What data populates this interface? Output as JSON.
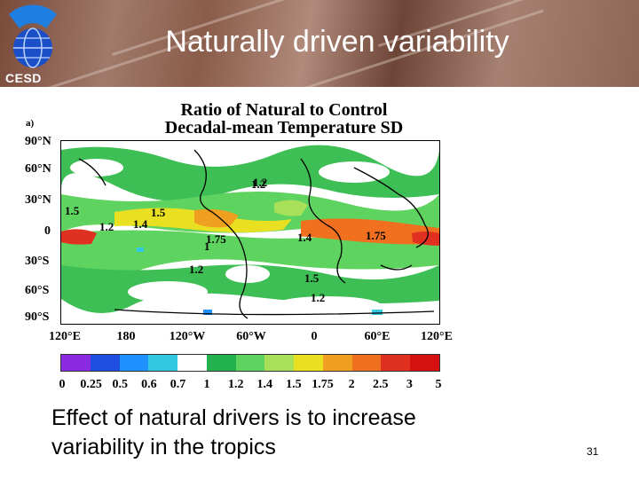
{
  "slide": {
    "title": "Naturally driven variability",
    "logo_text": "CESD",
    "page_number": "31",
    "caption_line1": "Effect of natural drivers is to increase",
    "caption_line2": "variability in the tropics"
  },
  "figure": {
    "title_line1": "Ratio of Natural to Control",
    "title_line2": "Decadal-mean Temperature SD",
    "panel_label": "a)",
    "lat_labels": [
      "90°N",
      "60°N",
      "30°N",
      "0",
      "30°S",
      "60°S",
      "90°S"
    ],
    "lon_labels": [
      "120°E",
      "180",
      "120°W",
      "60°W",
      "0",
      "60°E",
      "120°E"
    ],
    "colorbar_labels": [
      "0",
      "0.25",
      "0.5",
      "0.6",
      "0.7",
      "1",
      "1.2",
      "1.4",
      "1.5",
      "1.75",
      "2",
      "2.5",
      "3",
      "5"
    ],
    "colorbar_colors": [
      "#8a2be2",
      "#1f4fe0",
      "#1e90ff",
      "#33c8e0",
      "#ffffff",
      "#22b14c",
      "#5fd35f",
      "#a8e05a",
      "#e8e020",
      "#f0a020",
      "#f07020",
      "#e03020",
      "#d41010"
    ],
    "contour_labels": [
      "1",
      "1.2",
      "1.5",
      "1.2",
      "1.4",
      "1.5",
      "1.75",
      "1.4",
      "1.75",
      "1.2",
      "1.2",
      "1.5",
      "1.2"
    ]
  }
}
